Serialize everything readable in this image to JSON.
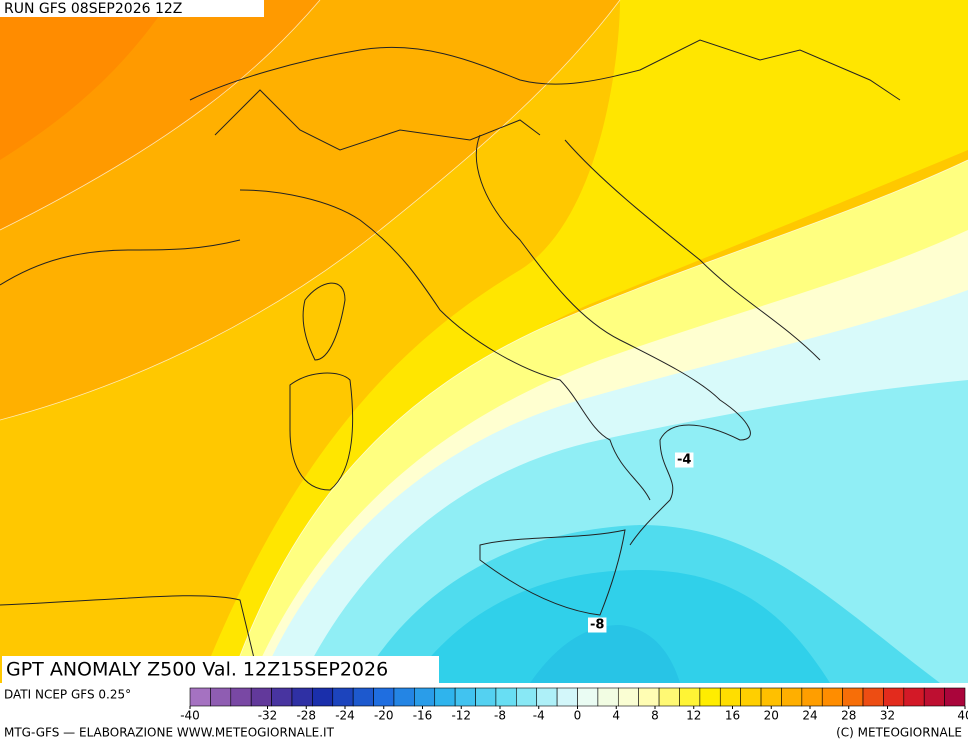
{
  "header": {
    "run": "RUN GFS 08SEP2026 12Z"
  },
  "map": {
    "title": "GPT ANOMALY Z500 Val. 12Z15SEP2026",
    "source": "DATI NCEP GFS 0.25°",
    "contour_labels": [
      "-4",
      "-8"
    ]
  },
  "colorbar": {
    "range": [
      -40,
      40
    ],
    "stops": [
      "#b07cc8",
      "#6a3a9a",
      "#1a2ca8",
      "#1f6ee0",
      "#30b8ee",
      "#6fe3f4",
      "#e6fbfb",
      "#ffffc8",
      "#fff000",
      "#ffc000",
      "#ff8a00",
      "#e02020",
      "#a00040"
    ],
    "ticks": [
      -40,
      -32,
      -28,
      -24,
      -20,
      -16,
      -12,
      -8,
      -4,
      0,
      4,
      8,
      12,
      16,
      20,
      24,
      28,
      32,
      40
    ]
  },
  "footer": {
    "left": "MTG-GFS — ELABORAZIONE WWW.METEOGIORNALE.IT",
    "right": "(C) METEOGIORNALE"
  }
}
